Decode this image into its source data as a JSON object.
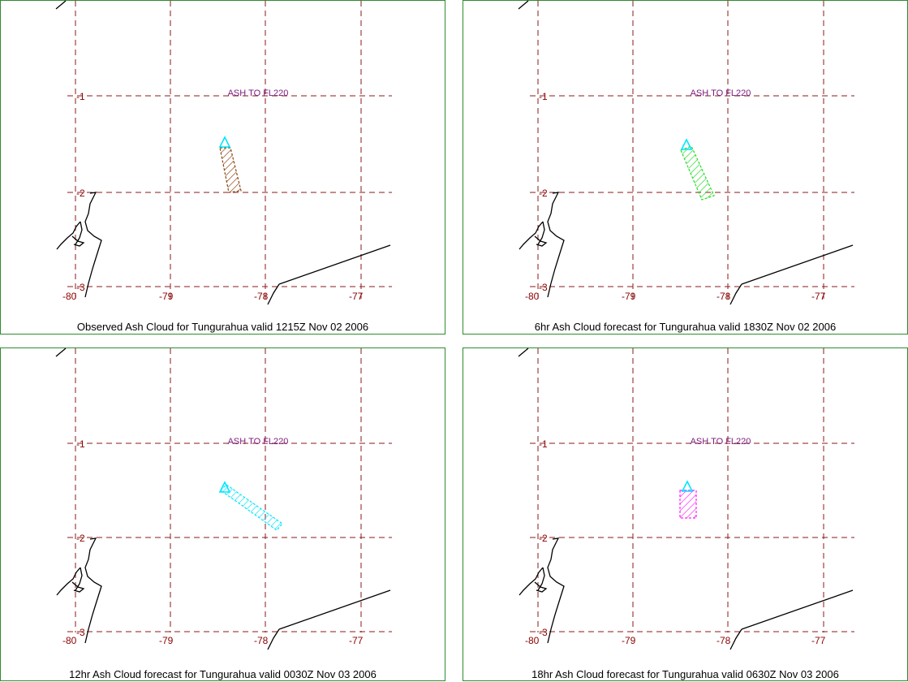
{
  "grid_color": "#8b1a1a",
  "lon_ticks": [
    "-80",
    "-79",
    "-78",
    "-77"
  ],
  "lat_ticks": [
    "-1",
    "-2",
    "-3"
  ],
  "panels": [
    {
      "caption": "Observed Ash Cloud for Tungurahua valid 1215Z Nov 02 2006",
      "label": "ASH TO FL220",
      "cloud_color": "#8b4513",
      "volcano_color": "#00e5ff"
    },
    {
      "caption": "6hr Ash Cloud forecast for Tungurahua valid 1830Z Nov 02 2006",
      "label": "ASH TO FL220",
      "cloud_color": "#22dd22",
      "volcano_color": "#00e5ff"
    },
    {
      "caption": "12hr Ash Cloud forecast for Tungurahua valid 0030Z Nov 03 2006",
      "label": "ASH TO FL220",
      "cloud_color": "#00e5ff",
      "volcano_color": "#00e5ff"
    },
    {
      "caption": "18hr Ash Cloud forecast for Tungurahua valid 0630Z Nov 03 2006",
      "label": "ASH TO FL220",
      "cloud_color": "#ff22ff",
      "volcano_color": "#00e5ff"
    }
  ]
}
